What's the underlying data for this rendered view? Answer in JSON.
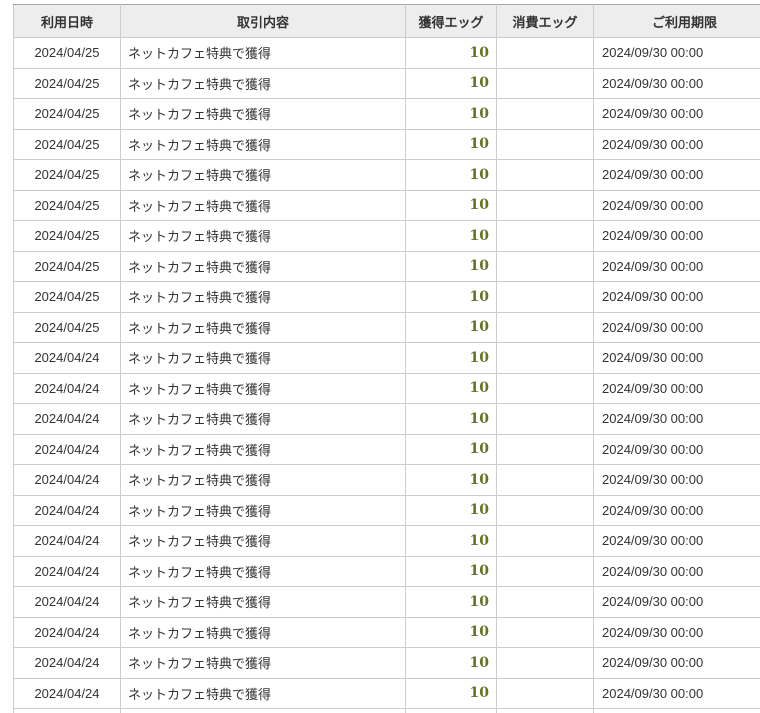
{
  "table": {
    "columns": [
      {
        "label": "利用日時"
      },
      {
        "label": "取引内容"
      },
      {
        "label": "獲得エッグ"
      },
      {
        "label": "消費エッグ"
      },
      {
        "label": "ご利用期限"
      }
    ],
    "rows": [
      {
        "date": "2024/04/25",
        "description": "ネットカフェ特典で獲得",
        "earned": "10",
        "consumed": "",
        "expiry": "2024/09/30 00:00"
      },
      {
        "date": "2024/04/25",
        "description": "ネットカフェ特典で獲得",
        "earned": "10",
        "consumed": "",
        "expiry": "2024/09/30 00:00"
      },
      {
        "date": "2024/04/25",
        "description": "ネットカフェ特典で獲得",
        "earned": "10",
        "consumed": "",
        "expiry": "2024/09/30 00:00"
      },
      {
        "date": "2024/04/25",
        "description": "ネットカフェ特典で獲得",
        "earned": "10",
        "consumed": "",
        "expiry": "2024/09/30 00:00"
      },
      {
        "date": "2024/04/25",
        "description": "ネットカフェ特典で獲得",
        "earned": "10",
        "consumed": "",
        "expiry": "2024/09/30 00:00"
      },
      {
        "date": "2024/04/25",
        "description": "ネットカフェ特典で獲得",
        "earned": "10",
        "consumed": "",
        "expiry": "2024/09/30 00:00"
      },
      {
        "date": "2024/04/25",
        "description": "ネットカフェ特典で獲得",
        "earned": "10",
        "consumed": "",
        "expiry": "2024/09/30 00:00"
      },
      {
        "date": "2024/04/25",
        "description": "ネットカフェ特典で獲得",
        "earned": "10",
        "consumed": "",
        "expiry": "2024/09/30 00:00"
      },
      {
        "date": "2024/04/25",
        "description": "ネットカフェ特典で獲得",
        "earned": "10",
        "consumed": "",
        "expiry": "2024/09/30 00:00"
      },
      {
        "date": "2024/04/25",
        "description": "ネットカフェ特典で獲得",
        "earned": "10",
        "consumed": "",
        "expiry": "2024/09/30 00:00"
      },
      {
        "date": "2024/04/24",
        "description": "ネットカフェ特典で獲得",
        "earned": "10",
        "consumed": "",
        "expiry": "2024/09/30 00:00"
      },
      {
        "date": "2024/04/24",
        "description": "ネットカフェ特典で獲得",
        "earned": "10",
        "consumed": "",
        "expiry": "2024/09/30 00:00"
      },
      {
        "date": "2024/04/24",
        "description": "ネットカフェ特典で獲得",
        "earned": "10",
        "consumed": "",
        "expiry": "2024/09/30 00:00"
      },
      {
        "date": "2024/04/24",
        "description": "ネットカフェ特典で獲得",
        "earned": "10",
        "consumed": "",
        "expiry": "2024/09/30 00:00"
      },
      {
        "date": "2024/04/24",
        "description": "ネットカフェ特典で獲得",
        "earned": "10",
        "consumed": "",
        "expiry": "2024/09/30 00:00"
      },
      {
        "date": "2024/04/24",
        "description": "ネットカフェ特典で獲得",
        "earned": "10",
        "consumed": "",
        "expiry": "2024/09/30 00:00"
      },
      {
        "date": "2024/04/24",
        "description": "ネットカフェ特典で獲得",
        "earned": "10",
        "consumed": "",
        "expiry": "2024/09/30 00:00"
      },
      {
        "date": "2024/04/24",
        "description": "ネットカフェ特典で獲得",
        "earned": "10",
        "consumed": "",
        "expiry": "2024/09/30 00:00"
      },
      {
        "date": "2024/04/24",
        "description": "ネットカフェ特典で獲得",
        "earned": "10",
        "consumed": "",
        "expiry": "2024/09/30 00:00"
      },
      {
        "date": "2024/04/24",
        "description": "ネットカフェ特典で獲得",
        "earned": "10",
        "consumed": "",
        "expiry": "2024/09/30 00:00"
      },
      {
        "date": "2024/04/24",
        "description": "ネットカフェ特典で獲得",
        "earned": "10",
        "consumed": "",
        "expiry": "2024/09/30 00:00"
      },
      {
        "date": "2024/04/24",
        "description": "ネットカフェ特典で獲得",
        "earned": "10",
        "consumed": "",
        "expiry": "2024/09/30 00:00"
      }
    ]
  },
  "colors": {
    "earned_value": "#667322",
    "header_bg": "#ededed",
    "border": "#cccccc",
    "table_top_border": "#a5a5a5",
    "text": "#333333"
  }
}
